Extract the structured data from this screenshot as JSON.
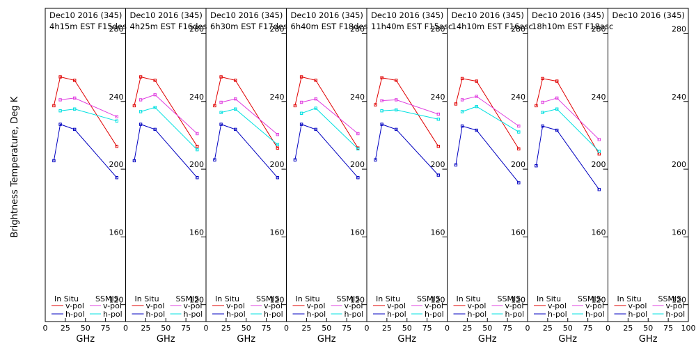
{
  "chart_data": {
    "type": "line",
    "ylabel": "Brightness Temperature, Deg K",
    "xlabel": "GHz",
    "xlim": [
      0,
      100
    ],
    "ylim": [
      110,
      295
    ],
    "x_ticks": [
      0,
      25,
      50,
      75
    ],
    "x_ticks_last_panel": [
      0,
      25,
      50,
      75,
      100
    ],
    "y_ticks": [
      120,
      160,
      200,
      240,
      280
    ],
    "legend": {
      "left_heading": "In Situ",
      "right_heading": "SSMIS",
      "v_label": "v-pol",
      "h_label": "h-pol"
    },
    "colors": {
      "insitu_v": "#e00000",
      "insitu_h": "#0000c0",
      "ssmis_v": "#e040e0",
      "ssmis_h": "#00e0e0"
    },
    "panels": [
      {
        "title1": "Dec10 2016 (345)",
        "title2": "4h15m  EST  F15des",
        "x": [
          10.7,
          18.7,
          36.5,
          89
        ],
        "insitu_v": [
          237.5,
          254.5,
          252.5,
          213.5
        ],
        "insitu_h": [
          205,
          226.5,
          223.5,
          195
        ],
        "ssmis_v": [
          null,
          241,
          242,
          231
        ],
        "ssmis_h": [
          null,
          234.5,
          235.5,
          228.5
        ]
      },
      {
        "title1": "Dec10 2016 (345)",
        "title2": "4h25m  EST  F16des",
        "x": [
          10.7,
          18.7,
          36.5,
          89
        ],
        "insitu_v": [
          237.5,
          254.5,
          252.5,
          213.5
        ],
        "insitu_h": [
          205,
          226.5,
          223.5,
          195
        ],
        "ssmis_v": [
          null,
          241,
          244,
          221
        ],
        "ssmis_h": [
          null,
          234,
          236.5,
          211.5
        ]
      },
      {
        "title1": "Dec10 2016 (345)",
        "title2": "6h30m  EST  F17des",
        "x": [
          10.7,
          18.7,
          36.5,
          89
        ],
        "insitu_v": [
          237.5,
          254.5,
          252.5,
          212.5
        ],
        "insitu_h": [
          205.5,
          226.5,
          223.5,
          195
        ],
        "ssmis_v": [
          null,
          239.5,
          241.5,
          220.5
        ],
        "ssmis_h": [
          null,
          233.5,
          235.5,
          214.5
        ]
      },
      {
        "title1": "Dec10 2016 (345)",
        "title2": "6h40m  EST  F18des",
        "x": [
          10.7,
          18.7,
          36.5,
          89
        ],
        "insitu_v": [
          237.5,
          254.5,
          252.5,
          212.5
        ],
        "insitu_h": [
          205.5,
          226.5,
          223.5,
          195
        ],
        "ssmis_v": [
          null,
          239.5,
          241.5,
          221
        ],
        "ssmis_h": [
          null,
          233,
          236,
          212
        ]
      },
      {
        "title1": "Dec10 2016 (345)",
        "title2": "11h40m  EST  F15asc",
        "x": [
          10.7,
          18.7,
          36.5,
          89
        ],
        "insitu_v": [
          238,
          254,
          252.5,
          213.5
        ],
        "insitu_h": [
          205.5,
          226.5,
          223.5,
          196.5
        ],
        "ssmis_v": [
          null,
          240.5,
          241,
          232.5
        ],
        "ssmis_h": [
          null,
          234.5,
          235,
          229.5
        ]
      },
      {
        "title1": "Dec10 2016 (345)",
        "title2": "14h10m  EST  F16asc",
        "x": [
          10.7,
          18.7,
          36.5,
          89
        ],
        "insitu_v": [
          238.5,
          253.5,
          252,
          212
        ],
        "insitu_h": [
          202.5,
          225.5,
          223,
          192
        ],
        "ssmis_v": [
          null,
          241,
          243,
          225.5
        ],
        "ssmis_h": [
          null,
          234,
          237,
          222
        ]
      },
      {
        "title1": "Dec10 2016 (345)",
        "title2": "18h10m  EST  F18asc",
        "x": [
          10.7,
          18.7,
          36.5,
          89
        ],
        "insitu_v": [
          237.5,
          253.5,
          252,
          209
        ],
        "insitu_h": [
          202,
          225.5,
          223,
          188
        ],
        "ssmis_v": [
          null,
          239.5,
          242,
          217.5
        ],
        "ssmis_h": [
          null,
          233.5,
          235.5,
          210.5
        ]
      },
      {
        "title1": "Dec10 2016 (345)",
        "title2": "",
        "x": [],
        "insitu_v": [],
        "insitu_h": [],
        "ssmis_v": [],
        "ssmis_h": []
      }
    ]
  }
}
